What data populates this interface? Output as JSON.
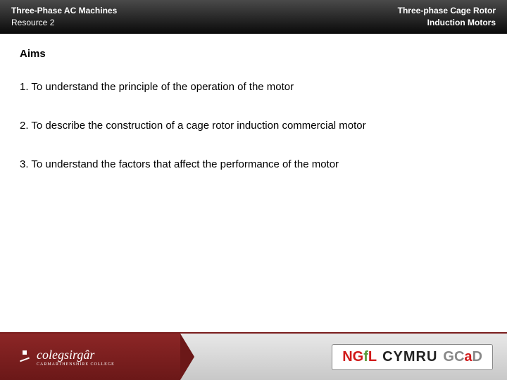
{
  "header": {
    "left_line1": "Three-Phase AC Machines",
    "left_line2": "Resource 2",
    "right_line1": "Three-phase Cage Rotor",
    "right_line2": "Induction Motors"
  },
  "content": {
    "title": "Aims",
    "items": [
      "1. To understand the principle of the operation of the motor",
      "2. To describe the construction of a cage rotor induction commercial motor",
      "3. To understand the factors that affect the performance of the motor"
    ]
  },
  "footer": {
    "logo_left": "colegsirgâr",
    "logo_left_sub": "CARMARTHENSHIRE COLLEGE",
    "ngfl_parts": {
      "p1": "NG",
      "p2": "f",
      "p3": "L",
      "p4": "CYMRU",
      "p5": "GC",
      "p6": "a",
      "p7": "D"
    }
  },
  "colors": {
    "header_grad_top": "#4a4a4a",
    "header_grad_bottom": "#0a0a0a",
    "footer_left_top": "#8c2626",
    "footer_left_bottom": "#6b1818",
    "footer_right_top": "#e8e8e8",
    "footer_right_bottom": "#c8c8c8",
    "footer_line": "#7a1d1d",
    "ngfl_red": "#d11a1a",
    "ngfl_green": "#5a9a3a",
    "ngfl_black": "#222222",
    "ngfl_grey": "#888888"
  }
}
